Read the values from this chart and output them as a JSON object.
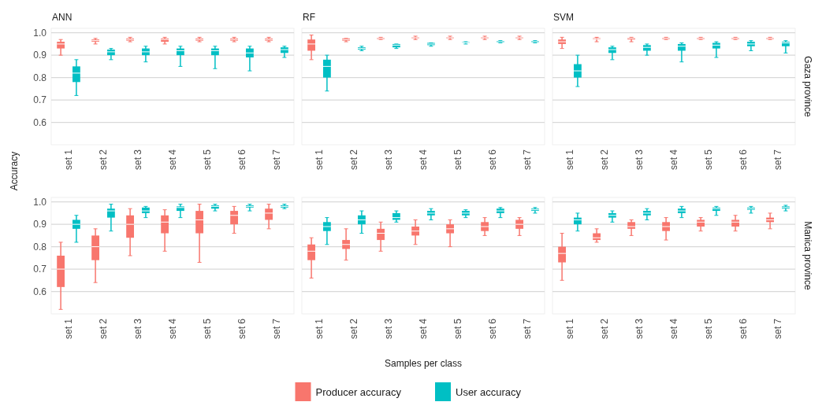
{
  "chart_data": [
    {
      "type": "box",
      "title": "ANN",
      "ylabel": "Accuracy",
      "categories": [
        "set 1",
        "set 2",
        "set 3",
        "set 4",
        "set 5",
        "set 6",
        "set 7"
      ],
      "ylim": [
        0.5,
        1.02
      ],
      "yticks": [
        0.6,
        0.7,
        0.8,
        0.9,
        {
          "value": 1,
          "label": "1.0"
        }
      ],
      "grid": "y",
      "series": [
        {
          "color": "#f8766d",
          "boxes": [
            {
              "low": 0.9,
              "q1": 0.93,
              "median": 0.95,
              "q3": 0.96,
              "high": 0.97
            },
            {
              "low": 0.95,
              "q1": 0.96,
              "median": 0.965,
              "q3": 0.97,
              "high": 0.975
            },
            {
              "low": 0.96,
              "q1": 0.965,
              "median": 0.97,
              "q3": 0.975,
              "high": 0.98
            },
            {
              "low": 0.95,
              "q1": 0.96,
              "median": 0.97,
              "q3": 0.975,
              "high": 0.98
            },
            {
              "low": 0.96,
              "q1": 0.965,
              "median": 0.97,
              "q3": 0.975,
              "high": 0.98
            },
            {
              "low": 0.96,
              "q1": 0.965,
              "median": 0.97,
              "q3": 0.975,
              "high": 0.98
            },
            {
              "low": 0.96,
              "q1": 0.965,
              "median": 0.97,
              "q3": 0.975,
              "high": 0.98
            }
          ]
        },
        {
          "color": "#00bfc4",
          "boxes": [
            {
              "low": 0.72,
              "q1": 0.78,
              "median": 0.82,
              "q3": 0.85,
              "high": 0.88
            },
            {
              "low": 0.88,
              "q1": 0.9,
              "median": 0.915,
              "q3": 0.925,
              "high": 0.93
            },
            {
              "low": 0.87,
              "q1": 0.9,
              "median": 0.915,
              "q3": 0.93,
              "high": 0.94
            },
            {
              "low": 0.85,
              "q1": 0.9,
              "median": 0.92,
              "q3": 0.93,
              "high": 0.94
            },
            {
              "low": 0.84,
              "q1": 0.9,
              "median": 0.92,
              "q3": 0.93,
              "high": 0.94
            },
            {
              "low": 0.83,
              "q1": 0.89,
              "median": 0.91,
              "q3": 0.93,
              "high": 0.94
            },
            {
              "low": 0.89,
              "q1": 0.91,
              "median": 0.925,
              "q3": 0.935,
              "high": 0.94
            }
          ]
        }
      ]
    },
    {
      "type": "box",
      "title": "RF",
      "categories": [
        "set 1",
        "set 2",
        "set 3",
        "set 4",
        "set 5",
        "set 6",
        "set 7"
      ],
      "ylim": [
        0.5,
        1.02
      ],
      "yticks": [
        0.6,
        0.7,
        0.8,
        0.9,
        1.0
      ],
      "grid": "y",
      "tick_labels": "x",
      "series": [
        {
          "color": "#f8766d",
          "boxes": [
            {
              "low": 0.88,
              "q1": 0.92,
              "median": 0.95,
              "q3": 0.97,
              "high": 0.99
            },
            {
              "low": 0.96,
              "q1": 0.965,
              "median": 0.97,
              "q3": 0.975,
              "high": 0.975
            },
            {
              "low": 0.97,
              "q1": 0.972,
              "median": 0.975,
              "q3": 0.978,
              "high": 0.98
            },
            {
              "low": 0.97,
              "q1": 0.975,
              "median": 0.978,
              "q3": 0.98,
              "high": 0.985
            },
            {
              "low": 0.97,
              "q1": 0.975,
              "median": 0.978,
              "q3": 0.98,
              "high": 0.985
            },
            {
              "low": 0.97,
              "q1": 0.975,
              "median": 0.978,
              "q3": 0.98,
              "high": 0.985
            },
            {
              "low": 0.97,
              "q1": 0.975,
              "median": 0.978,
              "q3": 0.98,
              "high": 0.985
            }
          ]
        },
        {
          "color": "#00bfc4",
          "boxes": [
            {
              "low": 0.74,
              "q1": 0.8,
              "median": 0.85,
              "q3": 0.88,
              "high": 0.9
            },
            {
              "low": 0.92,
              "q1": 0.925,
              "median": 0.93,
              "q3": 0.935,
              "high": 0.94
            },
            {
              "low": 0.93,
              "q1": 0.935,
              "median": 0.945,
              "q3": 0.95,
              "high": 0.95
            },
            {
              "low": 0.94,
              "q1": 0.945,
              "median": 0.95,
              "q3": 0.955,
              "high": 0.955
            },
            {
              "low": 0.95,
              "q1": 0.953,
              "median": 0.955,
              "q3": 0.958,
              "high": 0.96
            },
            {
              "low": 0.955,
              "q1": 0.957,
              "median": 0.96,
              "q3": 0.963,
              "high": 0.965
            },
            {
              "low": 0.955,
              "q1": 0.957,
              "median": 0.96,
              "q3": 0.963,
              "high": 0.965
            }
          ]
        }
      ]
    },
    {
      "type": "box",
      "title": "SVM",
      "categories": [
        "set 1",
        "set 2",
        "set 3",
        "set 4",
        "set 5",
        "set 6",
        "set 7"
      ],
      "ylim": [
        0.5,
        1.02
      ],
      "yticks": [
        0.6,
        0.7,
        0.8,
        0.9,
        1.0
      ],
      "grid": "y",
      "tick_labels": "x",
      "annotations": [
        "Gaza province"
      ],
      "series": [
        {
          "color": "#f8766d",
          "boxes": [
            {
              "low": 0.93,
              "q1": 0.95,
              "median": 0.96,
              "q3": 0.97,
              "high": 0.98
            },
            {
              "low": 0.96,
              "q1": 0.97,
              "median": 0.972,
              "q3": 0.976,
              "high": 0.98
            },
            {
              "low": 0.96,
              "q1": 0.97,
              "median": 0.975,
              "q3": 0.978,
              "high": 0.98
            },
            {
              "low": 0.97,
              "q1": 0.972,
              "median": 0.975,
              "q3": 0.978,
              "high": 0.98
            },
            {
              "low": 0.97,
              "q1": 0.972,
              "median": 0.975,
              "q3": 0.978,
              "high": 0.98
            },
            {
              "low": 0.97,
              "q1": 0.972,
              "median": 0.975,
              "q3": 0.978,
              "high": 0.98
            },
            {
              "low": 0.97,
              "q1": 0.972,
              "median": 0.975,
              "q3": 0.978,
              "high": 0.98
            }
          ]
        },
        {
          "color": "#00bfc4",
          "boxes": [
            {
              "low": 0.76,
              "q1": 0.8,
              "median": 0.83,
              "q3": 0.86,
              "high": 0.9
            },
            {
              "low": 0.88,
              "q1": 0.91,
              "median": 0.925,
              "q3": 0.935,
              "high": 0.94
            },
            {
              "low": 0.9,
              "q1": 0.92,
              "median": 0.935,
              "q3": 0.945,
              "high": 0.95
            },
            {
              "low": 0.87,
              "q1": 0.92,
              "median": 0.94,
              "q3": 0.95,
              "high": 0.955
            },
            {
              "low": 0.89,
              "q1": 0.93,
              "median": 0.945,
              "q3": 0.955,
              "high": 0.96
            },
            {
              "low": 0.92,
              "q1": 0.94,
              "median": 0.95,
              "q3": 0.96,
              "high": 0.965
            },
            {
              "low": 0.91,
              "q1": 0.94,
              "median": 0.955,
              "q3": 0.96,
              "high": 0.965
            }
          ]
        }
      ]
    },
    {
      "type": "box",
      "categories": [
        "set 1",
        "set 2",
        "set 3",
        "set 4",
        "set 5",
        "set 6",
        "set 7"
      ],
      "ylim": [
        0.5,
        1.02
      ],
      "yticks": [
        0.6,
        0.7,
        0.8,
        0.9,
        {
          "value": 1,
          "label": "1.0"
        }
      ],
      "grid": "y",
      "series": [
        {
          "color": "#f8766d",
          "boxes": [
            {
              "low": 0.52,
              "q1": 0.62,
              "median": 0.7,
              "q3": 0.76,
              "high": 0.82
            },
            {
              "low": 0.64,
              "q1": 0.74,
              "median": 0.8,
              "q3": 0.85,
              "high": 0.88
            },
            {
              "low": 0.76,
              "q1": 0.84,
              "median": 0.9,
              "q3": 0.94,
              "high": 0.97
            },
            {
              "low": 0.78,
              "q1": 0.86,
              "median": 0.91,
              "q3": 0.94,
              "high": 0.965
            },
            {
              "low": 0.73,
              "q1": 0.86,
              "median": 0.92,
              "q3": 0.96,
              "high": 0.99
            },
            {
              "low": 0.86,
              "q1": 0.9,
              "median": 0.94,
              "q3": 0.96,
              "high": 0.98
            },
            {
              "low": 0.88,
              "q1": 0.92,
              "median": 0.95,
              "q3": 0.97,
              "high": 0.99
            }
          ]
        },
        {
          "color": "#00bfc4",
          "boxes": [
            {
              "low": 0.82,
              "q1": 0.88,
              "median": 0.9,
              "q3": 0.92,
              "high": 0.94
            },
            {
              "low": 0.87,
              "q1": 0.93,
              "median": 0.96,
              "q3": 0.97,
              "high": 0.99
            },
            {
              "low": 0.93,
              "q1": 0.95,
              "median": 0.96,
              "q3": 0.975,
              "high": 0.98
            },
            {
              "low": 0.93,
              "q1": 0.96,
              "median": 0.975,
              "q3": 0.98,
              "high": 0.99
            },
            {
              "low": 0.96,
              "q1": 0.97,
              "median": 0.98,
              "q3": 0.985,
              "high": 0.99
            },
            {
              "low": 0.96,
              "q1": 0.975,
              "median": 0.98,
              "q3": 0.985,
              "high": 0.99
            },
            {
              "low": 0.97,
              "q1": 0.975,
              "median": 0.98,
              "q3": 0.985,
              "high": 0.99
            }
          ]
        }
      ]
    },
    {
      "type": "box",
      "xlabel": "Samples per class",
      "legend": "bottom",
      "categories": [
        "set 1",
        "set 2",
        "set 3",
        "set 4",
        "set 5",
        "set 6",
        "set 7"
      ],
      "ylim": [
        0.5,
        1.02
      ],
      "yticks": [
        0.6,
        0.7,
        0.8,
        0.9,
        1.0
      ],
      "grid": "y",
      "tick_labels": "x",
      "series": [
        {
          "name": "Producer accuracy",
          "color": "#f8766d",
          "boxes": [
            {
              "low": 0.66,
              "q1": 0.74,
              "median": 0.78,
              "q3": 0.81,
              "high": 0.84
            },
            {
              "low": 0.74,
              "q1": 0.79,
              "median": 0.81,
              "q3": 0.83,
              "high": 0.88
            },
            {
              "low": 0.78,
              "q1": 0.83,
              "median": 0.86,
              "q3": 0.88,
              "high": 0.91
            },
            {
              "low": 0.81,
              "q1": 0.85,
              "median": 0.87,
              "q3": 0.89,
              "high": 0.92
            },
            {
              "low": 0.8,
              "q1": 0.86,
              "median": 0.88,
              "q3": 0.9,
              "high": 0.92
            },
            {
              "low": 0.85,
              "q1": 0.87,
              "median": 0.89,
              "q3": 0.91,
              "high": 0.93
            },
            {
              "low": 0.85,
              "q1": 0.88,
              "median": 0.9,
              "q3": 0.92,
              "high": 0.93
            }
          ]
        },
        {
          "name": "User accuracy",
          "color": "#00bfc4",
          "boxes": [
            {
              "low": 0.81,
              "q1": 0.87,
              "median": 0.89,
              "q3": 0.91,
              "high": 0.93
            },
            {
              "low": 0.86,
              "q1": 0.9,
              "median": 0.92,
              "q3": 0.94,
              "high": 0.96
            },
            {
              "low": 0.91,
              "q1": 0.92,
              "median": 0.93,
              "q3": 0.95,
              "high": 0.96
            },
            {
              "low": 0.92,
              "q1": 0.94,
              "median": 0.95,
              "q3": 0.96,
              "high": 0.97
            },
            {
              "low": 0.93,
              "q1": 0.94,
              "median": 0.95,
              "q3": 0.96,
              "high": 0.965
            },
            {
              "low": 0.93,
              "q1": 0.95,
              "median": 0.96,
              "q3": 0.97,
              "high": 0.975
            },
            {
              "low": 0.95,
              "q1": 0.96,
              "median": 0.965,
              "q3": 0.97,
              "high": 0.975
            }
          ]
        }
      ]
    },
    {
      "type": "box",
      "categories": [
        "set 1",
        "set 2",
        "set 3",
        "set 4",
        "set 5",
        "set 6",
        "set 7"
      ],
      "ylim": [
        0.5,
        1.02
      ],
      "yticks": [
        0.6,
        0.7,
        0.8,
        0.9,
        1.0
      ],
      "grid": "y",
      "tick_labels": "x",
      "annotations": [
        "Manica province"
      ],
      "series": [
        {
          "color": "#f8766d",
          "boxes": [
            {
              "low": 0.65,
              "q1": 0.73,
              "median": 0.77,
              "q3": 0.8,
              "high": 0.86
            },
            {
              "low": 0.82,
              "q1": 0.83,
              "median": 0.84,
              "q3": 0.86,
              "high": 0.88
            },
            {
              "low": 0.85,
              "q1": 0.88,
              "median": 0.89,
              "q3": 0.91,
              "high": 0.92
            },
            {
              "low": 0.83,
              "q1": 0.87,
              "median": 0.89,
              "q3": 0.91,
              "high": 0.93
            },
            {
              "low": 0.87,
              "q1": 0.89,
              "median": 0.91,
              "q3": 0.92,
              "high": 0.93
            },
            {
              "low": 0.87,
              "q1": 0.89,
              "median": 0.91,
              "q3": 0.92,
              "high": 0.94
            },
            {
              "low": 0.88,
              "q1": 0.91,
              "median": 0.92,
              "q3": 0.93,
              "high": 0.95
            }
          ]
        },
        {
          "color": "#00bfc4",
          "boxes": [
            {
              "low": 0.87,
              "q1": 0.9,
              "median": 0.92,
              "q3": 0.93,
              "high": 0.95
            },
            {
              "low": 0.91,
              "q1": 0.93,
              "median": 0.94,
              "q3": 0.95,
              "high": 0.96
            },
            {
              "low": 0.92,
              "q1": 0.94,
              "median": 0.95,
              "q3": 0.96,
              "high": 0.97
            },
            {
              "low": 0.93,
              "q1": 0.95,
              "median": 0.96,
              "q3": 0.97,
              "high": 0.98
            },
            {
              "low": 0.94,
              "q1": 0.96,
              "median": 0.97,
              "q3": 0.975,
              "high": 0.98
            },
            {
              "low": 0.95,
              "q1": 0.965,
              "median": 0.97,
              "q3": 0.975,
              "high": 0.98
            },
            {
              "low": 0.96,
              "q1": 0.97,
              "median": 0.975,
              "q3": 0.98,
              "high": 0.985
            }
          ]
        }
      ]
    }
  ]
}
